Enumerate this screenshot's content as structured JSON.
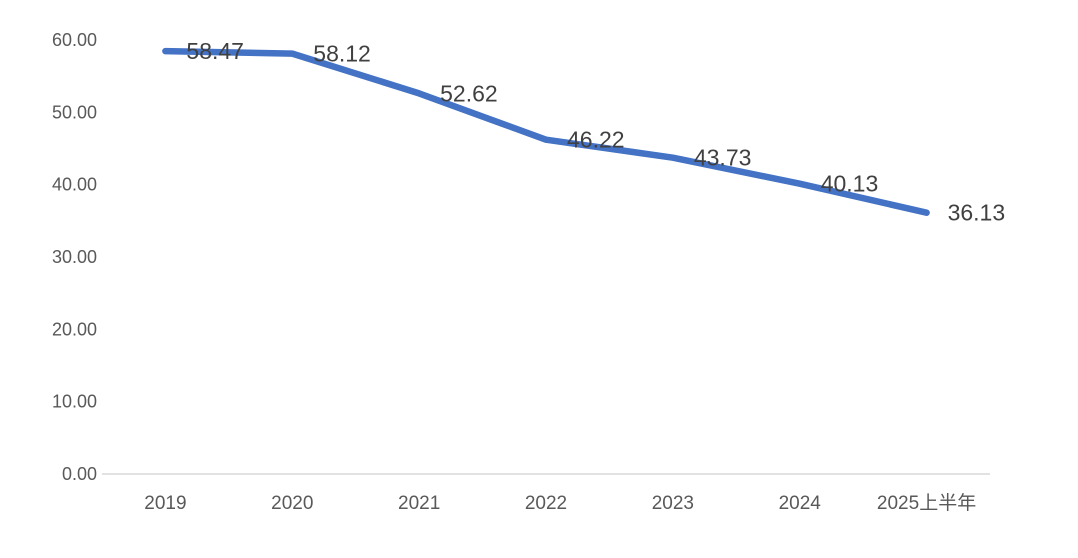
{
  "chart_data": {
    "type": "line",
    "title": "",
    "xlabel": "",
    "ylabel": "",
    "categories": [
      "2019",
      "2020",
      "2021",
      "2022",
      "2023",
      "2024",
      "2025上半年"
    ],
    "values": [
      58.47,
      58.12,
      52.62,
      46.22,
      43.73,
      40.13,
      36.13
    ],
    "data_labels": [
      "58.47",
      "58.12",
      "52.62",
      "46.22",
      "43.73",
      "40.13",
      "36.13"
    ],
    "ylim": [
      0,
      60
    ],
    "y_tick_step": 10,
    "y_tick_labels": [
      "0.00",
      "10.00",
      "20.00",
      "30.00",
      "40.00",
      "50.00",
      "60.00"
    ],
    "grid": false,
    "legend": "none",
    "colors": {
      "line": "#4472C4",
      "data_label_text": "#404040",
      "axis_tick_text": "#595959",
      "axis_line": "#D9D9D9",
      "background": "#FFFFFF"
    }
  }
}
